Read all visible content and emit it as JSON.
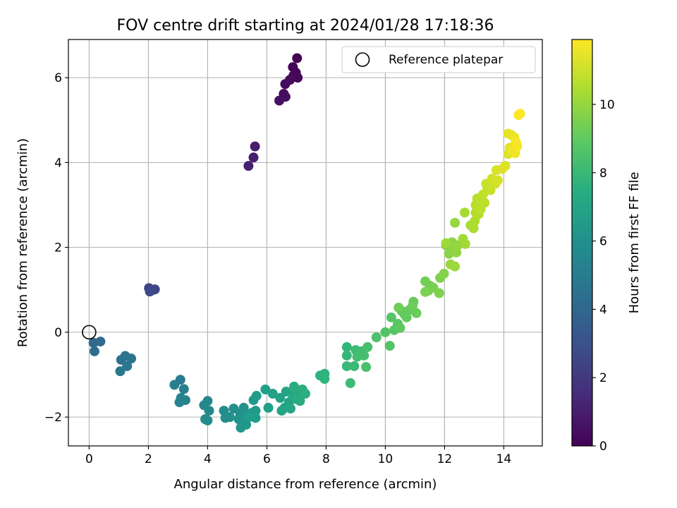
{
  "chart_data": {
    "type": "scatter",
    "title": "FOV centre drift starting at 2024/01/28 17:18:36",
    "xlabel": "Angular distance from reference (arcmin)",
    "ylabel": "Rotation from reference (arcmin)",
    "colorbar_label": "Hours from first FF file",
    "xlim": [
      -0.7,
      15.3
    ],
    "ylim": [
      -2.68,
      6.9
    ],
    "clim": [
      0,
      11.9
    ],
    "x_ticks": [
      0,
      2,
      4,
      6,
      8,
      10,
      12,
      14
    ],
    "y_ticks": [
      -2,
      0,
      2,
      4,
      6
    ],
    "colorbar_ticks": [
      0,
      2,
      4,
      6,
      8,
      10
    ],
    "grid": true,
    "colormap": "viridis",
    "legend": {
      "placement": "upper right",
      "label": "Reference platepar"
    },
    "reference_point": {
      "x": 0,
      "y": 0
    },
    "points": [
      [
        7.02,
        6.46,
        0.05
      ],
      [
        6.88,
        6.25,
        0.1
      ],
      [
        6.98,
        6.12,
        0.15
      ],
      [
        6.9,
        6.05,
        0.2
      ],
      [
        7.04,
        6.0,
        0.25
      ],
      [
        6.78,
        5.95,
        0.3
      ],
      [
        6.62,
        5.85,
        0.35
      ],
      [
        6.57,
        5.62,
        0.4
      ],
      [
        6.63,
        5.55,
        0.45
      ],
      [
        6.42,
        5.46,
        0.5
      ],
      [
        5.6,
        4.38,
        0.9
      ],
      [
        5.55,
        4.12,
        1.0
      ],
      [
        5.38,
        3.92,
        1.1
      ],
      [
        2.02,
        1.04,
        2.3
      ],
      [
        2.1,
        0.98,
        2.4
      ],
      [
        2.22,
        1.01,
        2.5
      ],
      [
        2.05,
        0.96,
        2.6
      ],
      [
        0.15,
        -0.25,
        4.0
      ],
      [
        0.38,
        -0.22,
        4.1
      ],
      [
        0.18,
        -0.45,
        4.2
      ],
      [
        1.08,
        -0.65,
        4.4
      ],
      [
        1.22,
        -0.56,
        4.5
      ],
      [
        1.42,
        -0.62,
        4.6
      ],
      [
        1.28,
        -0.8,
        4.7
      ],
      [
        1.05,
        -0.92,
        4.8
      ],
      [
        3.08,
        -1.12,
        5.0
      ],
      [
        2.88,
        -1.24,
        5.1
      ],
      [
        3.2,
        -1.34,
        5.2
      ],
      [
        3.1,
        -1.55,
        5.3
      ],
      [
        3.25,
        -1.6,
        5.35
      ],
      [
        3.05,
        -1.65,
        5.4
      ],
      [
        4.0,
        -1.62,
        5.5
      ],
      [
        3.88,
        -1.72,
        5.55
      ],
      [
        4.05,
        -1.85,
        5.6
      ],
      [
        3.92,
        -2.05,
        5.65
      ],
      [
        4.0,
        -2.08,
        5.7
      ],
      [
        4.55,
        -1.85,
        5.8
      ],
      [
        4.6,
        -2.02,
        5.85
      ],
      [
        4.75,
        -2.0,
        5.9
      ],
      [
        4.88,
        -1.8,
        5.95
      ],
      [
        5.1,
        -1.92,
        6.0
      ],
      [
        5.22,
        -1.78,
        6.05
      ],
      [
        5.05,
        -2.05,
        6.1
      ],
      [
        5.25,
        -2.05,
        6.15
      ],
      [
        5.35,
        -1.98,
        6.2
      ],
      [
        5.12,
        -2.25,
        6.25
      ],
      [
        5.3,
        -2.18,
        6.3
      ],
      [
        5.5,
        -1.9,
        6.35
      ],
      [
        5.62,
        -1.85,
        6.4
      ],
      [
        5.55,
        -1.6,
        6.45
      ],
      [
        5.65,
        -1.5,
        6.5
      ],
      [
        5.62,
        -2.02,
        6.55
      ],
      [
        5.4,
        -2.0,
        6.6
      ],
      [
        5.95,
        -1.35,
        6.65
      ],
      [
        6.05,
        -1.78,
        6.7
      ],
      [
        6.2,
        -1.45,
        6.75
      ],
      [
        6.45,
        -1.55,
        6.8
      ],
      [
        6.6,
        -1.78,
        6.85
      ],
      [
        6.5,
        -1.85,
        6.9
      ],
      [
        6.65,
        -1.4,
        6.95
      ],
      [
        6.75,
        -1.65,
        7.0
      ],
      [
        6.8,
        -1.8,
        7.05
      ],
      [
        6.88,
        -1.5,
        7.1
      ],
      [
        6.98,
        -1.35,
        7.15
      ],
      [
        7.05,
        -1.45,
        7.2
      ],
      [
        7.12,
        -1.62,
        7.25
      ],
      [
        7.0,
        -1.58,
        7.3
      ],
      [
        6.92,
        -1.28,
        7.35
      ],
      [
        7.2,
        -1.35,
        7.4
      ],
      [
        7.3,
        -1.45,
        7.45
      ],
      [
        7.8,
        -1.02,
        7.6
      ],
      [
        7.95,
        -0.98,
        7.65
      ],
      [
        7.95,
        -1.1,
        7.7
      ],
      [
        8.7,
        -0.35,
        7.9
      ],
      [
        8.7,
        -0.55,
        7.95
      ],
      [
        8.7,
        -0.8,
        8.0
      ],
      [
        8.95,
        -0.8,
        8.05
      ],
      [
        8.82,
        -1.2,
        8.1
      ],
      [
        9.0,
        -0.42,
        8.15
      ],
      [
        9.1,
        -0.5,
        8.2
      ],
      [
        9.2,
        -0.45,
        8.25
      ],
      [
        9.05,
        -0.58,
        8.3
      ],
      [
        9.28,
        -0.55,
        8.35
      ],
      [
        9.4,
        -0.35,
        8.4
      ],
      [
        9.35,
        -0.82,
        8.45
      ],
      [
        9.7,
        -0.12,
        8.5
      ],
      [
        10.0,
        0.0,
        8.6
      ],
      [
        10.15,
        -0.32,
        8.65
      ],
      [
        10.2,
        0.35,
        8.7
      ],
      [
        10.3,
        0.05,
        8.75
      ],
      [
        10.42,
        0.2,
        8.8
      ],
      [
        10.5,
        0.1,
        8.85
      ],
      [
        10.55,
        0.5,
        8.9
      ],
      [
        10.65,
        0.42,
        8.95
      ],
      [
        10.72,
        0.35,
        9.0
      ],
      [
        10.8,
        0.52,
        9.05
      ],
      [
        10.95,
        0.72,
        9.1
      ],
      [
        11.05,
        0.45,
        9.15
      ],
      [
        10.92,
        0.62,
        9.2
      ],
      [
        10.45,
        0.58,
        9.25
      ],
      [
        11.35,
        1.2,
        9.3
      ],
      [
        11.5,
        1.1,
        9.35
      ],
      [
        11.45,
        0.98,
        9.4
      ],
      [
        11.62,
        1.05,
        9.45
      ],
      [
        11.35,
        0.95,
        9.5
      ],
      [
        11.82,
        0.92,
        9.55
      ],
      [
        11.85,
        1.28,
        9.6
      ],
      [
        11.98,
        1.38,
        9.65
      ],
      [
        12.05,
        2.05,
        9.7
      ],
      [
        12.15,
        1.85,
        9.75
      ],
      [
        12.25,
        2.12,
        9.8
      ],
      [
        12.3,
        1.98,
        9.85
      ],
      [
        12.4,
        1.88,
        9.9
      ],
      [
        12.45,
        2.05,
        9.95
      ],
      [
        12.35,
        2.58,
        10.0
      ],
      [
        12.2,
        1.6,
        10.05
      ],
      [
        12.35,
        1.55,
        10.1
      ],
      [
        12.05,
        2.1,
        10.15
      ],
      [
        12.62,
        2.2,
        10.2
      ],
      [
        12.7,
        2.08,
        10.25
      ],
      [
        12.68,
        2.82,
        10.3
      ],
      [
        12.88,
        2.52,
        10.35
      ],
      [
        12.98,
        2.45,
        10.4
      ],
      [
        13.02,
        2.62,
        10.45
      ],
      [
        13.05,
        2.82,
        10.5
      ],
      [
        13.15,
        2.78,
        10.55
      ],
      [
        13.05,
        3.0,
        10.6
      ],
      [
        13.1,
        3.15,
        10.65
      ],
      [
        13.22,
        2.9,
        10.7
      ],
      [
        13.35,
        3.05,
        10.75
      ],
      [
        13.3,
        3.25,
        10.8
      ],
      [
        13.45,
        3.4,
        10.85
      ],
      [
        13.4,
        3.5,
        10.9
      ],
      [
        13.55,
        3.35,
        10.95
      ],
      [
        13.65,
        3.55,
        11.0
      ],
      [
        13.72,
        3.5,
        11.05
      ],
      [
        13.6,
        3.62,
        11.1
      ],
      [
        13.8,
        3.58,
        11.15
      ],
      [
        13.75,
        3.82,
        11.2
      ],
      [
        13.95,
        3.85,
        11.25
      ],
      [
        14.05,
        3.92,
        11.3
      ],
      [
        14.15,
        4.2,
        11.35
      ],
      [
        14.2,
        4.35,
        11.4
      ],
      [
        14.25,
        4.65,
        11.45
      ],
      [
        14.15,
        4.68,
        11.5
      ],
      [
        14.35,
        4.6,
        11.55
      ],
      [
        14.3,
        4.28,
        11.6
      ],
      [
        14.38,
        4.22,
        11.65
      ],
      [
        14.4,
        4.5,
        11.7
      ],
      [
        14.45,
        4.38,
        11.75
      ],
      [
        14.42,
        4.45,
        11.8
      ],
      [
        14.5,
        5.12,
        11.85
      ],
      [
        14.55,
        5.15,
        11.9
      ]
    ]
  }
}
